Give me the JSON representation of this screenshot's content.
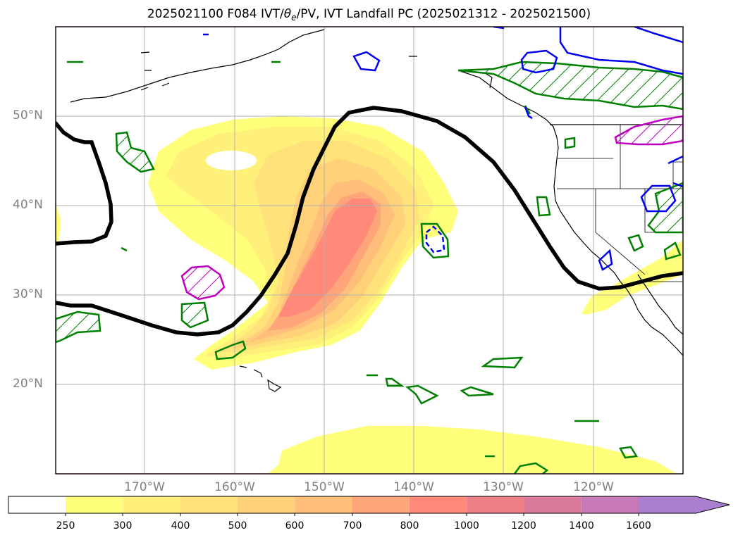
{
  "title": "2025021100 F084 IVT/θe/PV, IVT Landfall PC (2025021312 - 2025021500)",
  "title_parts": {
    "prefix": "2025021100 F084 IVT/",
    "theta_symbol": "θ",
    "theta_subscript": "e",
    "suffix": "/PV, IVT Landfall PC (2025021312 - 2025021500)"
  },
  "map": {
    "lat_labels": [
      "50°N",
      "40°N",
      "30°N",
      "20°N"
    ],
    "lon_labels": [
      "170°W",
      "160°W",
      "150°W",
      "140°W",
      "130°W",
      "120°W"
    ],
    "extent": {
      "lon_min": -180,
      "lon_max": -110,
      "lat_min": 10,
      "lat_max": 60
    },
    "gridlines": true,
    "grid_lons": [
      -170,
      -160,
      -150,
      -140,
      -130,
      -120
    ],
    "grid_lats": [
      20,
      30,
      40,
      50
    ]
  },
  "colorbar": {
    "labels": [
      "250",
      "300",
      "400",
      "500",
      "600",
      "700",
      "800",
      "1000",
      "1200",
      "1400",
      "1600"
    ],
    "colors": [
      "#ffff7a",
      "#fff07a",
      "#ffe27a",
      "#ffd27a",
      "#ffbe7a",
      "#ffa57a",
      "#ff8a7a",
      "#ee7f88",
      "#d97a9c",
      "#c87ab8",
      "#ab80d0"
    ],
    "extend": "max"
  },
  "layers": {
    "ivt_fill_colors": [
      "#ffff7a",
      "#fff07a",
      "#ffe27a",
      "#ffd27a",
      "#ffbe7a",
      "#ffa57a",
      "#ff8a7a"
    ],
    "dynamic_tropopause_color": "#000000",
    "pv_contour_colors": {
      "green": "#008000",
      "magenta": "#c000c0",
      "blue": "#0000ee"
    },
    "coastline_color": "#000000"
  }
}
